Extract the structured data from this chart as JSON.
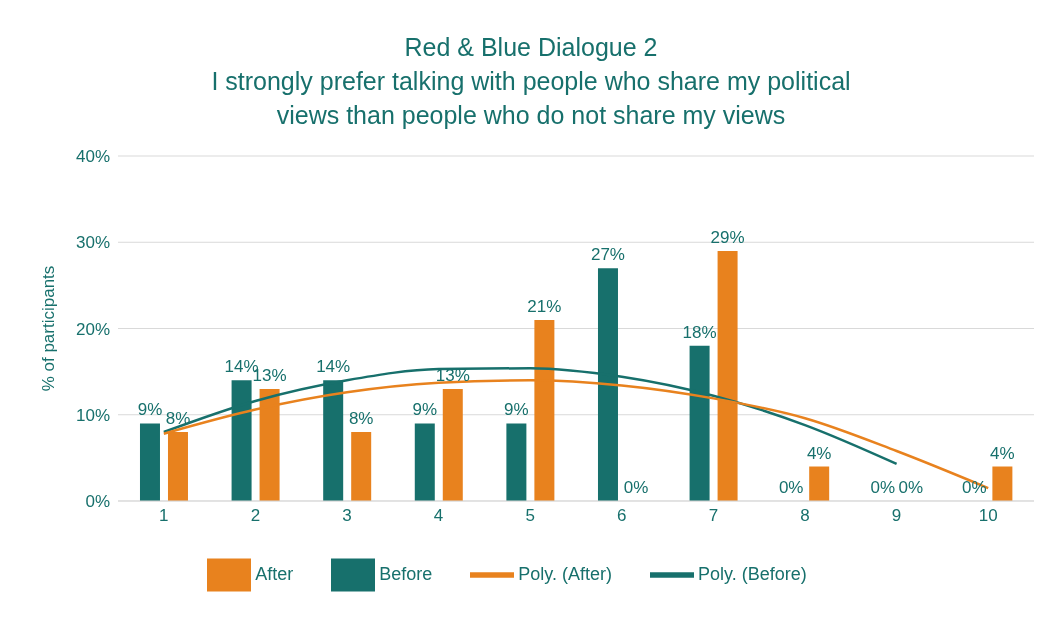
{
  "chart_data": {
    "type": "bar",
    "title": "Red & Blue Dialogue 2",
    "subtitle": "I strongly prefer talking with people who share my political views than people who do not share my views",
    "ylabel": "% of participants",
    "categories": [
      "1",
      "2",
      "3",
      "4",
      "5",
      "6",
      "7",
      "8",
      "9",
      "10"
    ],
    "series": [
      {
        "name": "Before",
        "color": "#17706c",
        "values": [
          9,
          14,
          14,
          9,
          9,
          27,
          18,
          0,
          0,
          0
        ],
        "value_labels": [
          "9%",
          "14%",
          "14%",
          "9%",
          "9%",
          "27%",
          "18%",
          "0%",
          "0%",
          "0%"
        ]
      },
      {
        "name": "After",
        "color": "#e8821e",
        "values": [
          8,
          13,
          8,
          13,
          21,
          0,
          29,
          4,
          0,
          4
        ],
        "value_labels": [
          "8%",
          "13%",
          "8%",
          "13%",
          "21%",
          "0%",
          "29%",
          "4%",
          "0%",
          "4%"
        ]
      },
      {
        "name": "Poly. (Before)",
        "type": "line",
        "color": "#17706c",
        "values": [
          8,
          11.6,
          14,
          15.3,
          15.4,
          14.4,
          12.2,
          8.8,
          4.3,
          null
        ]
      },
      {
        "name": "Poly. (After)",
        "type": "line",
        "color": "#e8821e",
        "values": [
          7.8,
          10.6,
          12.6,
          13.7,
          14,
          13.4,
          11.9,
          9.6,
          5.8,
          1.5
        ]
      }
    ],
    "ylim": [
      0,
      40
    ],
    "yticks": [
      {
        "value": 0,
        "label": "0%"
      },
      {
        "value": 10,
        "label": "10%"
      },
      {
        "value": 20,
        "label": "20%"
      },
      {
        "value": 30,
        "label": "30%"
      },
      {
        "value": 40,
        "label": "40%"
      }
    ],
    "grid": "y",
    "legend": "bottom",
    "marker": "none",
    "line_style": "solid"
  }
}
